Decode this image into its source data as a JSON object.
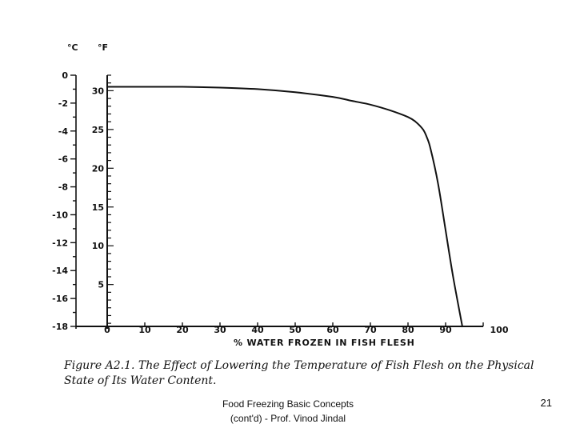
{
  "chart_data": {
    "type": "line",
    "title": "",
    "xlabel": "% WATER FROZEN IN FISH FLESH",
    "ylabel_c": "°C",
    "ylabel_f": "°F",
    "xlim": [
      0,
      100
    ],
    "ylim_c": [
      -18,
      0
    ],
    "ylim_f": [
      0,
      32
    ],
    "x_ticks": [
      0,
      10,
      20,
      30,
      40,
      50,
      60,
      70,
      80,
      90,
      100
    ],
    "c_ticks": [
      0,
      -2,
      -4,
      -6,
      -8,
      -10,
      -12,
      -14,
      -16,
      -18
    ],
    "c_tick_labels": [
      "0",
      "-2",
      "-4",
      "-6",
      "-8",
      "-10",
      "-12",
      "-14",
      "-16",
      "-18"
    ],
    "f_ticks": [
      5,
      10,
      15,
      20,
      25,
      30
    ],
    "grid": false,
    "legend": "none",
    "series": [
      {
        "x": [
          0,
          10,
          20,
          30,
          40,
          50,
          60,
          65,
          70,
          75,
          80,
          82,
          84,
          85,
          86,
          88,
          90,
          92,
          94.5
        ],
        "y_f": [
          30.5,
          30.5,
          30.5,
          30.4,
          30.2,
          29.8,
          29.2,
          28.7,
          28.2,
          27.5,
          26.6,
          26.0,
          25.0,
          24.0,
          22.5,
          18.0,
          12.0,
          6.0,
          -0.5
        ]
      }
    ]
  },
  "caption": {
    "line1": "Figure A2.1. The Effect of Lowering the Temperature of Fish Flesh on the Physical",
    "line2": "State of Its Water Content."
  },
  "footer": {
    "line1": "Food Freezing Basic Concepts",
    "line2": "(cont'd) - Prof. Vinod Jindal"
  },
  "page_number": "21"
}
